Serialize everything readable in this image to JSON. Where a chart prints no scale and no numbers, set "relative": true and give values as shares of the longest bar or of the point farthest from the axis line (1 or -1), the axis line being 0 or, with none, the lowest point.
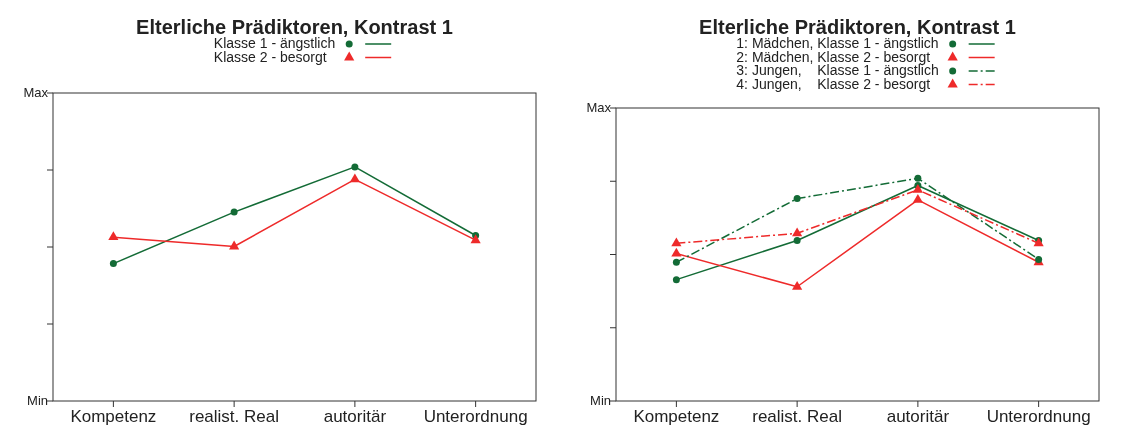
{
  "chart_data": [
    {
      "type": "line",
      "title": "Elterliche Prädiktoren, Kontrast 1",
      "categories": [
        "Kompetenz",
        "realist. Real",
        "autoritär",
        "Unterordnung"
      ],
      "relative": true,
      "annotations": [
        "Min",
        "Max"
      ],
      "legend": "top",
      "series": [
        {
          "name": "Klasse 1 - ängstlich",
          "color": "#136b36",
          "marker": "circle",
          "line_style": "solid",
          "values": [
            0.587,
            0.807,
            1,
            0.707
          ]
        },
        {
          "name": "Klasse 2 - besorgt",
          "color": "#ee2a2a",
          "marker": "triangle",
          "line_style": "solid",
          "values": [
            0.7,
            0.66,
            0.947,
            0.687
          ]
        }
      ]
    },
    {
      "type": "line",
      "title": "Elterliche Prädiktoren, Kontrast 1",
      "categories": [
        "Kompetenz",
        "realist. Real",
        "autoritär",
        "Unterordnung"
      ],
      "relative": true,
      "annotations": [
        "Min",
        "Max"
      ],
      "legend": "top",
      "series": [
        {
          "name": "1: Mädchen, Klasse 1 - ängstlich",
          "color": "#136b36",
          "marker": "circle",
          "line_style": "solid",
          "values": [
            0.545,
            0.721,
            0.968,
            0.721
          ]
        },
        {
          "name": "2: Mädchen, Klasse 2 - besorgt",
          "color": "#ee2a2a",
          "marker": "triangle",
          "line_style": "solid",
          "values": [
            0.662,
            0.513,
            0.903,
            0.623
          ]
        },
        {
          "name": "3: Jungen,    Klasse 1 - ängstlich",
          "color": "#136b36",
          "marker": "circle",
          "line_style": "dashed",
          "values": [
            0.623,
            0.909,
            1,
            0.636
          ]
        },
        {
          "name": "4: Jungen,    Klasse 2 - besorgt",
          "color": "#ee2a2a",
          "marker": "triangle",
          "line_style": "dashed",
          "values": [
            0.708,
            0.753,
            0.948,
            0.708
          ]
        }
      ]
    }
  ]
}
